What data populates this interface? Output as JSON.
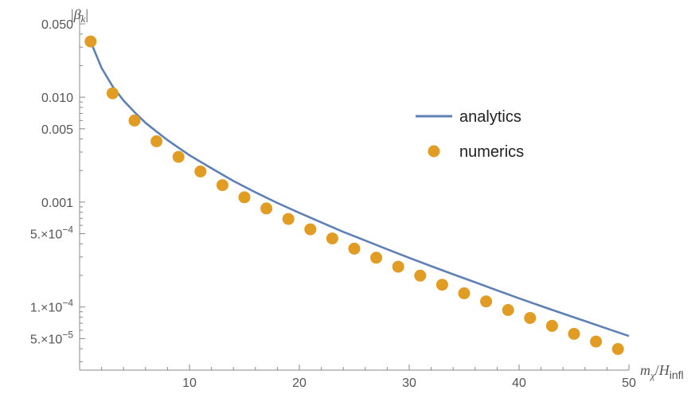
{
  "chart_data": {
    "type": "scatter",
    "x_axis": {
      "label_main": "m",
      "label_sub1": "χ",
      "label_slash": "/",
      "label_main2": "H",
      "label_sub2": "infl",
      "range": [
        0,
        50
      ],
      "ticks": [
        10,
        20,
        30,
        40,
        50
      ],
      "tick_labels": [
        "10",
        "20",
        "30",
        "40",
        "50"
      ]
    },
    "y_axis": {
      "label_bar1": "|",
      "label_main": "β",
      "label_sub": "k",
      "label_bar2": "|",
      "scale": "log",
      "range": [
        2.5e-05,
        0.065
      ],
      "ticks": [
        {
          "value": 0.05,
          "mant": "0.050",
          "exp": ""
        },
        {
          "value": 0.01,
          "mant": "0.010",
          "exp": ""
        },
        {
          "value": 0.005,
          "mant": "0.005",
          "exp": ""
        },
        {
          "value": 0.001,
          "mant": "0.001",
          "exp": ""
        },
        {
          "value": 0.0005,
          "mant": "5.×10",
          "exp": "−4"
        },
        {
          "value": 0.0001,
          "mant": "1.×10",
          "exp": "−4"
        },
        {
          "value": 5e-05,
          "mant": "5.×10",
          "exp": "−5"
        }
      ]
    },
    "series": [
      {
        "name": "analytics",
        "kind": "line",
        "color": "#5e81b5",
        "x": [
          1,
          2,
          3,
          4,
          5,
          6,
          7,
          8,
          9,
          10,
          12,
          14,
          16,
          18,
          20,
          22,
          24,
          26,
          28,
          30,
          32,
          34,
          36,
          38,
          40,
          42,
          44,
          46,
          48,
          50
        ],
        "y": [
          0.034,
          0.019,
          0.0127,
          0.0093,
          0.0072,
          0.0057,
          0.0047,
          0.0039,
          0.0033,
          0.0028,
          0.0021,
          0.00159,
          0.00124,
          0.00098,
          0.00079,
          0.00064,
          0.00052,
          0.00043,
          0.000355,
          0.000294,
          0.000245,
          0.000205,
          0.000172,
          0.000144,
          0.000121,
          0.000102,
          8.65e-05,
          7.33e-05,
          6.22e-05,
          5.28e-05
        ]
      },
      {
        "name": "numerics",
        "kind": "points",
        "color": "#e19c24",
        "x": [
          1,
          3,
          5,
          7,
          9,
          11,
          13,
          15,
          17,
          19,
          21,
          23,
          25,
          27,
          29,
          31,
          33,
          35,
          37,
          39,
          41,
          43,
          45,
          47,
          49
        ],
        "y": [
          0.034,
          0.0109,
          0.006,
          0.0038,
          0.0027,
          0.00196,
          0.00145,
          0.00111,
          0.00087,
          0.00069,
          0.00055,
          0.00045,
          0.00036,
          0.000295,
          0.000242,
          0.000199,
          0.000163,
          0.000135,
          0.000113,
          9.35e-05,
          7.85e-05,
          6.6e-05,
          5.55e-05,
          4.68e-05,
          3.97e-05
        ]
      }
    ]
  }
}
